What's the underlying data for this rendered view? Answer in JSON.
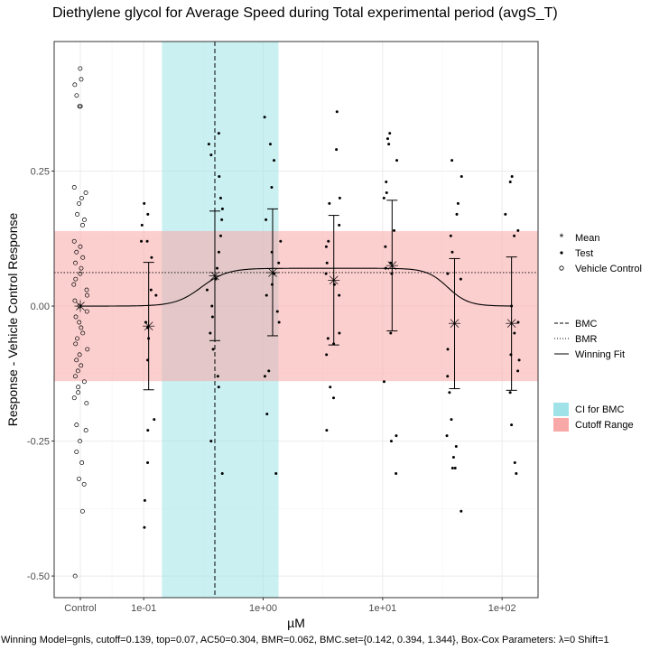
{
  "chart_data": {
    "type": "scatter",
    "title": "Diethylene glycol for Average Speed during Total experimental period (avgS_T)",
    "xlabel": "µM",
    "ylabel": "Response - Vehicle Control Response",
    "x_scale": "log10",
    "x_tick_labels": [
      "Control",
      "1e-01",
      "1e+00",
      "1e+01",
      "1e+02"
    ],
    "x_tick_values": [
      null,
      0.1,
      1,
      10,
      100
    ],
    "xlim": [
      0.0178,
      200
    ],
    "ylim": [
      -0.54,
      0.49
    ],
    "y_ticks": [
      -0.5,
      -0.25,
      0.0,
      0.25
    ],
    "y_tick_labels": [
      "-0.50",
      "-0.25",
      "0.00",
      "0.25"
    ],
    "grid": true,
    "legend_position": "right",
    "cutoff_range": [
      -0.139,
      0.139
    ],
    "bmr": 0.062,
    "bmc": 0.394,
    "ci_for_bmc": [
      0.142,
      1.344
    ],
    "fit": {
      "model": "gnls",
      "top": 0.07,
      "ac50": 0.304,
      "cutoff": 0.139
    },
    "legend": {
      "points": [
        {
          "label": "Mean",
          "icon": "asterisk-icon"
        },
        {
          "label": "Test",
          "icon": "filled-dot-icon"
        },
        {
          "label": "Vehicle Control",
          "icon": "open-circle-icon"
        }
      ],
      "lines": [
        {
          "label": "BMC",
          "style": "dashed"
        },
        {
          "label": "BMR",
          "style": "dotted"
        },
        {
          "label": "Winning Fit",
          "style": "solid"
        }
      ],
      "fills": [
        {
          "label": "CI for BMC",
          "color": "#9fe3e8"
        },
        {
          "label": "Cutoff Range",
          "color": "#f9a8a8"
        }
      ]
    },
    "means": [
      {
        "x": "Control",
        "y": 0.0,
        "err_low": null,
        "err_high": null
      },
      {
        "x": 0.11,
        "y": -0.037,
        "err_low": -0.155,
        "err_high": 0.081
      },
      {
        "x": 0.394,
        "y": 0.056,
        "err_low": -0.064,
        "err_high": 0.176
      },
      {
        "x": 1.2,
        "y": 0.062,
        "err_low": -0.055,
        "err_high": 0.18
      },
      {
        "x": 3.9,
        "y": 0.048,
        "err_low": -0.072,
        "err_high": 0.168
      },
      {
        "x": 12.0,
        "y": 0.075,
        "err_low": -0.046,
        "err_high": 0.196
      },
      {
        "x": 40.0,
        "y": -0.032,
        "err_low": -0.153,
        "err_high": 0.088
      },
      {
        "x": 120.0,
        "y": -0.032,
        "err_low": -0.156,
        "err_high": 0.091
      }
    ],
    "vehicle_control_points": [
      0.44,
      0.42,
      0.41,
      0.39,
      0.37,
      0.37,
      0.22,
      0.21,
      0.2,
      0.19,
      0.17,
      0.16,
      0.15,
      0.12,
      0.11,
      0.1,
      0.09,
      0.08,
      0.07,
      0.06,
      0.05,
      0.04,
      0.03,
      0.02,
      0.01,
      0.0,
      -0.01,
      -0.02,
      -0.03,
      -0.04,
      -0.05,
      -0.06,
      -0.07,
      -0.08,
      -0.09,
      -0.1,
      -0.11,
      -0.12,
      -0.13,
      -0.14,
      -0.15,
      -0.16,
      -0.17,
      -0.18,
      -0.22,
      -0.23,
      -0.25,
      -0.27,
      -0.29,
      -0.32,
      -0.33,
      -0.38,
      -0.5
    ],
    "test_points": [
      {
        "x": 0.11,
        "y": [
          0.19,
          0.17,
          0.15,
          0.12,
          0.12,
          0.09,
          0.03,
          0.02,
          -0.03,
          -0.04,
          -0.06,
          -0.1,
          -0.21,
          -0.23,
          -0.29,
          -0.36,
          -0.41
        ]
      },
      {
        "x": 0.394,
        "y": [
          0.32,
          0.3,
          0.28,
          0.24,
          0.2,
          0.18,
          0.16,
          0.13,
          0.1,
          0.07,
          0.05,
          0.03,
          0.0,
          -0.02,
          -0.05,
          -0.08,
          -0.13,
          -0.15,
          -0.25,
          -0.31
        ]
      },
      {
        "x": 1.2,
        "y": [
          0.35,
          0.3,
          0.27,
          0.22,
          0.16,
          0.12,
          0.1,
          0.08,
          0.06,
          0.04,
          0.02,
          -0.01,
          -0.03,
          -0.12,
          -0.13,
          -0.2,
          -0.31
        ]
      },
      {
        "x": 3.9,
        "y": [
          0.36,
          0.29,
          0.2,
          0.19,
          0.15,
          0.12,
          0.11,
          0.08,
          0.06,
          0.04,
          0.02,
          -0.05,
          -0.06,
          -0.07,
          -0.09,
          -0.15,
          -0.17,
          -0.23
        ]
      },
      {
        "x": 12.0,
        "y": [
          0.32,
          0.31,
          0.3,
          0.27,
          0.23,
          0.21,
          0.2,
          0.14,
          0.11,
          0.08,
          0.07,
          0.06,
          -0.05,
          -0.14,
          -0.24,
          -0.25,
          -0.31
        ]
      },
      {
        "x": 40.0,
        "y": [
          0.27,
          0.24,
          0.19,
          0.17,
          0.13,
          0.1,
          0.06,
          0.05,
          -0.08,
          -0.13,
          -0.16,
          -0.21,
          -0.24,
          -0.26,
          -0.28,
          -0.3,
          -0.3,
          -0.38
        ]
      },
      {
        "x": 120.0,
        "y": [
          0.24,
          0.23,
          0.17,
          0.14,
          0.13,
          0.0,
          -0.03,
          -0.05,
          -0.09,
          -0.1,
          -0.12,
          -0.16,
          -0.22,
          -0.29,
          -0.31
        ]
      }
    ]
  },
  "caption": "Winning Model=gnls, cutoff=0.139, top=0.07, AC50=0.304, BMR=0.062, BMC.set={0.142, 0.394, 1.344}, Box-Cox Parameters: λ=0 Shift=1"
}
